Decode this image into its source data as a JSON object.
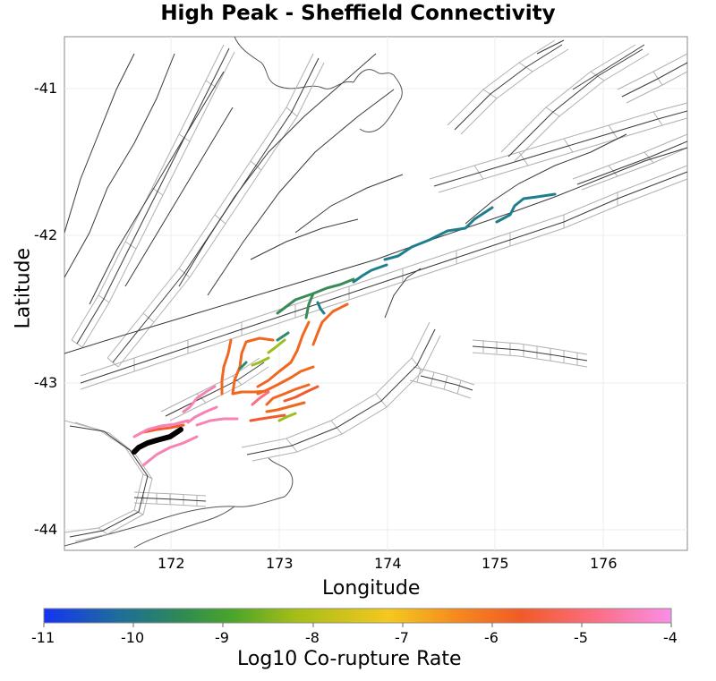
{
  "title": "High Peak - Sheffield Connectivity",
  "x_axis": {
    "label": "Longitude",
    "ticks": [
      "172",
      "173",
      "174",
      "175",
      "176"
    ]
  },
  "y_axis": {
    "label": "Latitude",
    "ticks": [
      "-41",
      "-42",
      "-43",
      "-44"
    ]
  },
  "colorbar": {
    "label": "Log10 Co-rupture Rate",
    "ticks": [
      "-11",
      "-10",
      "-9",
      "-8",
      "-7",
      "-6",
      "-5",
      "-4"
    ],
    "colors": [
      "#1433f5",
      "#1e6e9a",
      "#2f8a55",
      "#4aa52a",
      "#a4bd18",
      "#f5c81e",
      "#f5891e",
      "#f25a28",
      "#fb6e84",
      "#f98fe8"
    ]
  },
  "map_colors": {
    "fault_trace": "#3a3a3a",
    "fault_surface": "#b0b0b0",
    "coastline": "#555555",
    "source_rupture": "#000000",
    "teal_low_rate": "#1d7f8c",
    "green_rate": "#3a8a5a",
    "olive_rate": "#9cbf20",
    "orange_rate": "#f06820",
    "salmon_rate": "#f25a30",
    "pink_rate": "#f882b4"
  }
}
